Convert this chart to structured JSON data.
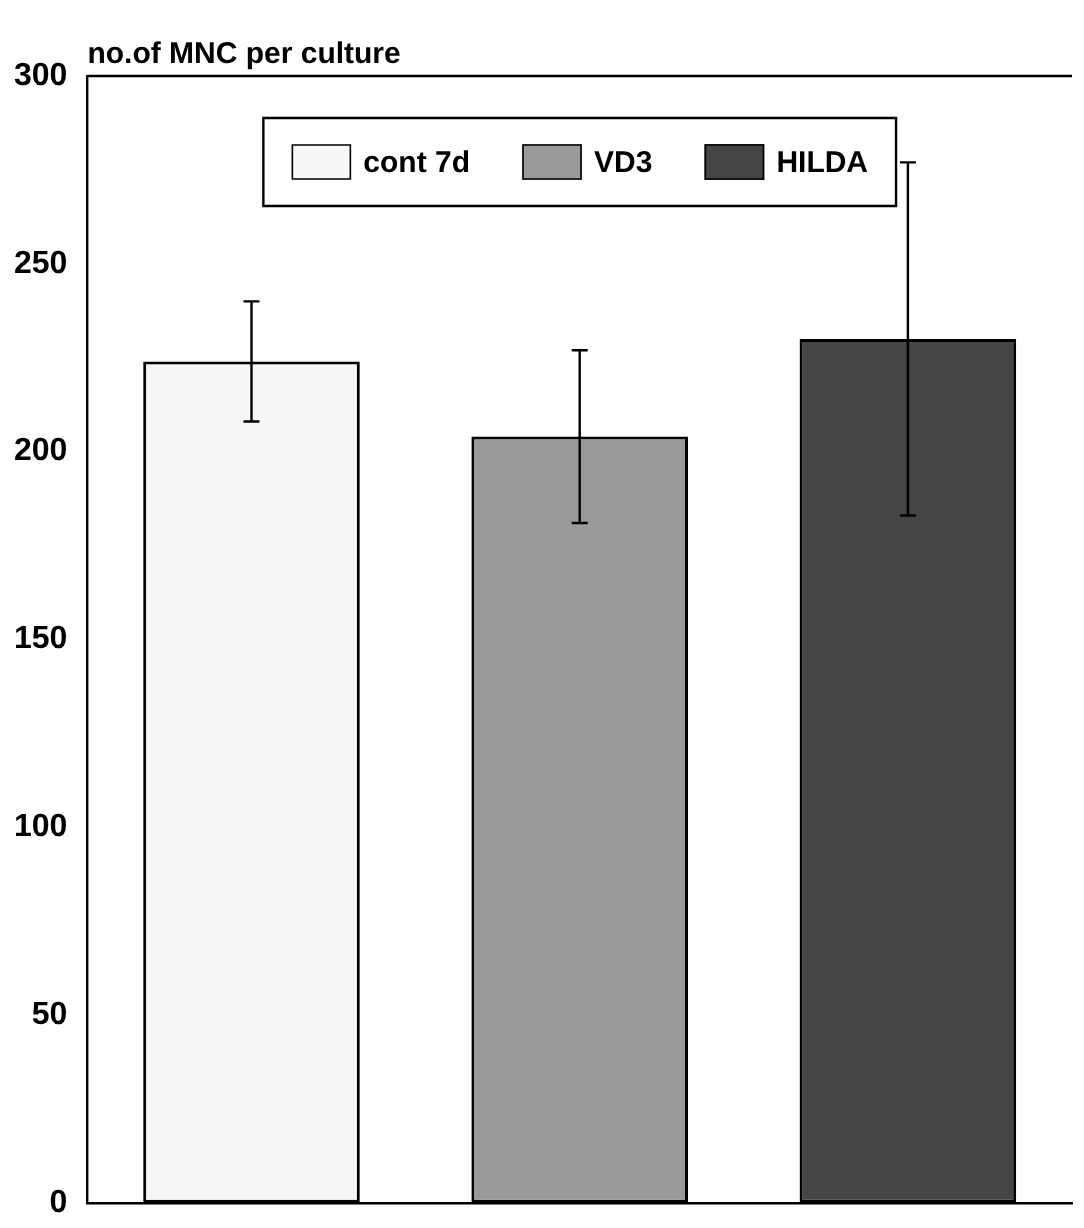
{
  "chart_data": {
    "type": "bar",
    "ylabel": "no.of MNC per culture",
    "categories": [
      null
    ],
    "series": [
      {
        "name": "cont 7d",
        "color": "#f6f6f6",
        "values": [
          224
        ],
        "errors": [
          16
        ]
      },
      {
        "name": "VD3",
        "color": "#9a9a9a",
        "values": [
          204
        ],
        "errors": [
          23
        ]
      },
      {
        "name": "HILDA",
        "color": "#454545",
        "values": [
          230
        ],
        "errors": [
          47
        ]
      }
    ],
    "ylim": [
      0,
      300
    ],
    "yticks": [
      0,
      50,
      100,
      150,
      200,
      250,
      300
    ],
    "grid": false,
    "legend": "top"
  }
}
